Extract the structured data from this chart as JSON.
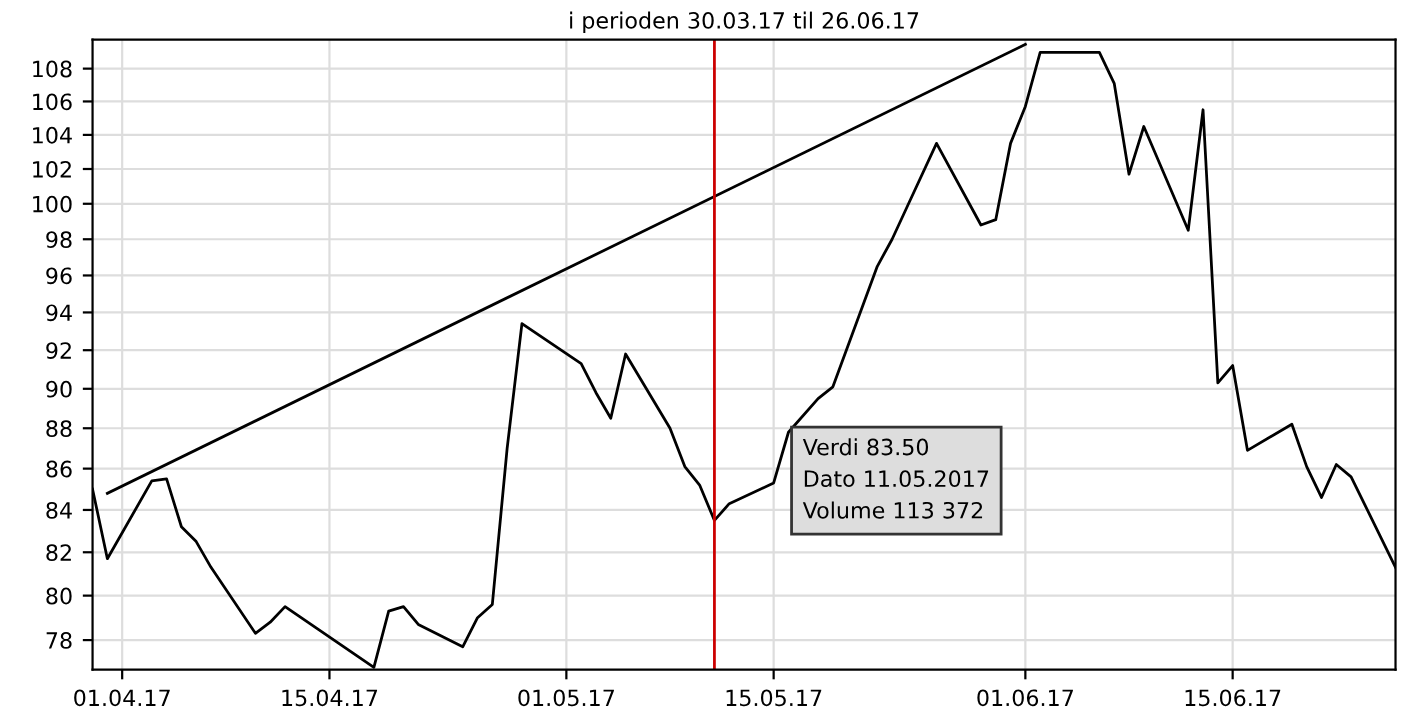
{
  "chart_data": {
    "type": "line",
    "title": "i perioden 30.03.17 til 26.06.17",
    "x": [
      "2017-03-30",
      "2017-03-31",
      "2017-04-03",
      "2017-04-04",
      "2017-04-05",
      "2017-04-06",
      "2017-04-07",
      "2017-04-10",
      "2017-04-11",
      "2017-04-12",
      "2017-04-18",
      "2017-04-19",
      "2017-04-20",
      "2017-04-21",
      "2017-04-24",
      "2017-04-25",
      "2017-04-26",
      "2017-04-27",
      "2017-04-28",
      "2017-05-02",
      "2017-05-03",
      "2017-05-04",
      "2017-05-05",
      "2017-05-08",
      "2017-05-09",
      "2017-05-10",
      "2017-05-11",
      "2017-05-12",
      "2017-05-15",
      "2017-05-16",
      "2017-05-18",
      "2017-05-19",
      "2017-05-22",
      "2017-05-23",
      "2017-05-24",
      "2017-05-26",
      "2017-05-29",
      "2017-05-30",
      "2017-05-31",
      "2017-06-01",
      "2017-06-02",
      "2017-06-06",
      "2017-06-07",
      "2017-06-08",
      "2017-06-09",
      "2017-06-12",
      "2017-06-13",
      "2017-06-14",
      "2017-06-15",
      "2017-06-16",
      "2017-06-19",
      "2017-06-20",
      "2017-06-21",
      "2017-06-22",
      "2017-06-23",
      "2017-06-26"
    ],
    "series": [
      {
        "color": "#000000",
        "values": [
          85.0,
          81.7,
          85.4,
          85.5,
          83.2,
          82.5,
          81.3,
          78.3,
          78.8,
          79.5,
          76.8,
          79.3,
          79.5,
          78.7,
          77.7,
          79.0,
          79.6,
          87.0,
          93.4,
          91.3,
          89.8,
          88.5,
          91.8,
          88.0,
          86.1,
          85.2,
          83.5,
          84.3,
          85.3,
          87.8,
          89.5,
          90.1,
          96.5,
          98.0,
          99.8,
          103.5,
          98.8,
          99.1,
          103.5,
          105.7,
          109.0,
          109.0,
          107.1,
          101.7,
          104.5,
          98.5,
          105.5,
          90.3,
          91.2,
          86.9,
          88.2,
          86.1,
          84.6,
          86.2,
          85.6,
          81.3
        ]
      },
      {
        "type": "line",
        "color": "#000000",
        "x": [
          "2017-03-31",
          "2017-06-01"
        ],
        "values": [
          84.8,
          109.5
        ]
      }
    ],
    "xlim": [
      "2017-03-30",
      "2017-06-26"
    ],
    "xticks": [
      {
        "value": "2017-04-01",
        "label": "01.04.17"
      },
      {
        "value": "2017-04-15",
        "label": "15.04.17"
      },
      {
        "value": "2017-05-01",
        "label": "01.05.17"
      },
      {
        "value": "2017-05-15",
        "label": "15.05.17"
      },
      {
        "value": "2017-06-01",
        "label": "01.06.17"
      },
      {
        "value": "2017-06-15",
        "label": "15.06.17"
      }
    ],
    "log": "y",
    "ylim": [
      76.7,
      109.8
    ],
    "yticks": [
      78,
      80,
      82,
      84,
      86,
      88,
      90,
      92,
      94,
      96,
      98,
      100,
      102,
      104,
      106,
      108
    ],
    "grid": true,
    "ref_lines": [
      {
        "axis": "x",
        "value": "2017-05-11",
        "color": "#cc0000"
      }
    ],
    "annotations": [
      "Verdi 83.50\nDato 11.05.2017\nVolume 113 372"
    ]
  }
}
